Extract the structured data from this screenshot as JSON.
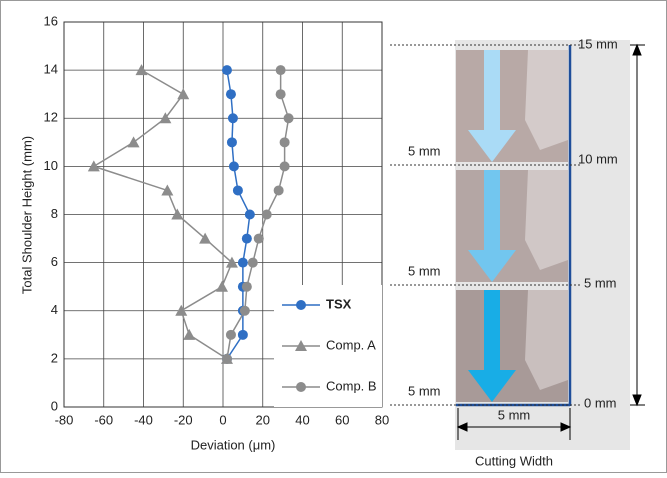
{
  "chart_data": {
    "type": "line",
    "xlabel": "Deviation (μm)",
    "ylabel": "Total Shoulder Height (mm)",
    "xlim": [
      -80,
      80
    ],
    "xticks": [
      -80,
      -60,
      -40,
      -20,
      0,
      20,
      40,
      60,
      80
    ],
    "ylim": [
      0,
      16
    ],
    "yticks": [
      0,
      2,
      4,
      6,
      8,
      10,
      12,
      14,
      16
    ],
    "grid": true,
    "legend": "lower right",
    "series": [
      {
        "name": "TSX",
        "color": "#2f6fc4",
        "marker": "circle",
        "bold": true,
        "x": [
          2,
          4,
          5,
          4.5,
          5.5,
          7.5,
          13.5,
          12,
          10,
          10,
          10,
          10,
          2
        ],
        "y": [
          14,
          13,
          12,
          11,
          10,
          9,
          8,
          7,
          6,
          5,
          4,
          3,
          2
        ]
      },
      {
        "name": "Comp. A",
        "color": "#8c8c8c",
        "marker": "triangle",
        "x": [
          -41,
          -20,
          -29,
          -45,
          -65,
          -28,
          -23,
          -9,
          4.5,
          -0.5,
          -21,
          -17,
          2
        ],
        "y": [
          14,
          13,
          12,
          11,
          10,
          9,
          8,
          7,
          6,
          5,
          4,
          3,
          2
        ]
      },
      {
        "name": "Comp. B",
        "color": "#8c8c8c",
        "marker": "circle",
        "x": [
          29,
          29,
          33,
          31,
          31,
          28,
          22,
          18,
          15,
          12,
          11,
          4,
          2
        ],
        "y": [
          14,
          13,
          12,
          11,
          10,
          9,
          8,
          7,
          6,
          5,
          4,
          3,
          2
        ]
      }
    ]
  },
  "diagram": {
    "levels": [
      "15 mm",
      "10 mm",
      "5 mm",
      "0 mm"
    ],
    "steps": [
      "5 mm",
      "5 mm",
      "5 mm"
    ],
    "width": "5 mm",
    "caption": "Cutting Width"
  }
}
